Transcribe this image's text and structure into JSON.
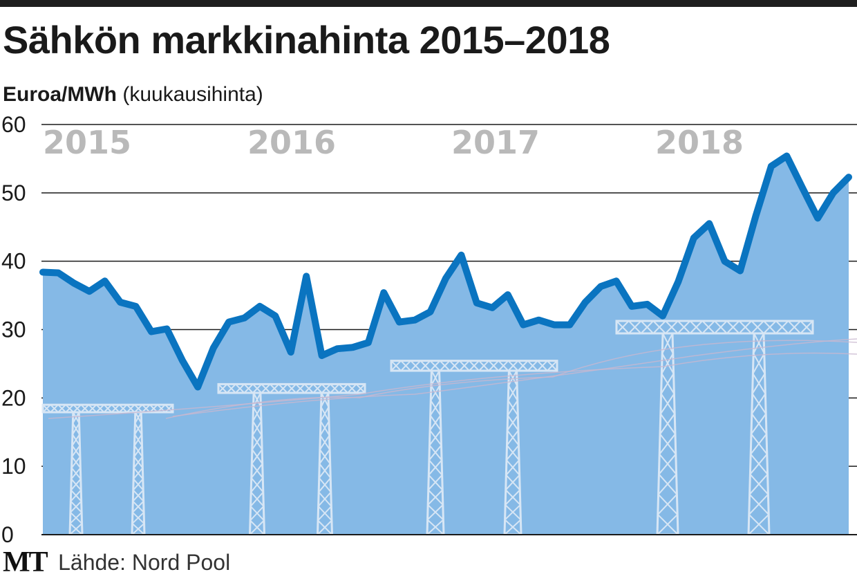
{
  "title": "Sähkön markkinahinta 2015–2018",
  "subtitle": {
    "unit": "Euroa/MWh",
    "note": "(kuukausihinta)"
  },
  "footer": {
    "logo": "MT",
    "source": "Lähde: Nord Pool"
  },
  "colors": {
    "line": "#0a74c0",
    "area": "#85b9e6",
    "grid": "#1a1a1a",
    "year_label": "#b9b9b9",
    "pylon": "#dce9f6"
  },
  "chart_data": {
    "type": "area",
    "title": "Sähkön markkinahinta 2015–2018",
    "ylabel": "Euroa/MWh (kuukausihinta)",
    "ylim": [
      0,
      60
    ],
    "yticks": [
      0,
      10,
      20,
      30,
      40,
      50,
      60
    ],
    "grid": true,
    "year_labels": [
      "2015",
      "2016",
      "2017",
      "2018"
    ],
    "series": [
      {
        "values": [
          38.4,
          38.3,
          36.8,
          35.6,
          37.1,
          34.0,
          33.4,
          29.7,
          30.1,
          25.5,
          21.6,
          27.3,
          31.1,
          31.7,
          33.4,
          32.0,
          26.7,
          37.8,
          26.2,
          27.2,
          27.4,
          28.1,
          35.4,
          31.1,
          31.4,
          32.6,
          37.5,
          40.9,
          33.9,
          33.2,
          35.1,
          30.7,
          31.4,
          30.7,
          30.7,
          34.0,
          36.3,
          37.1,
          33.4,
          33.7,
          32.0,
          37.0,
          43.4,
          45.5,
          40.0,
          38.6,
          46.6,
          53.9,
          55.4,
          50.8,
          46.3,
          50.0,
          52.3
        ]
      }
    ]
  }
}
